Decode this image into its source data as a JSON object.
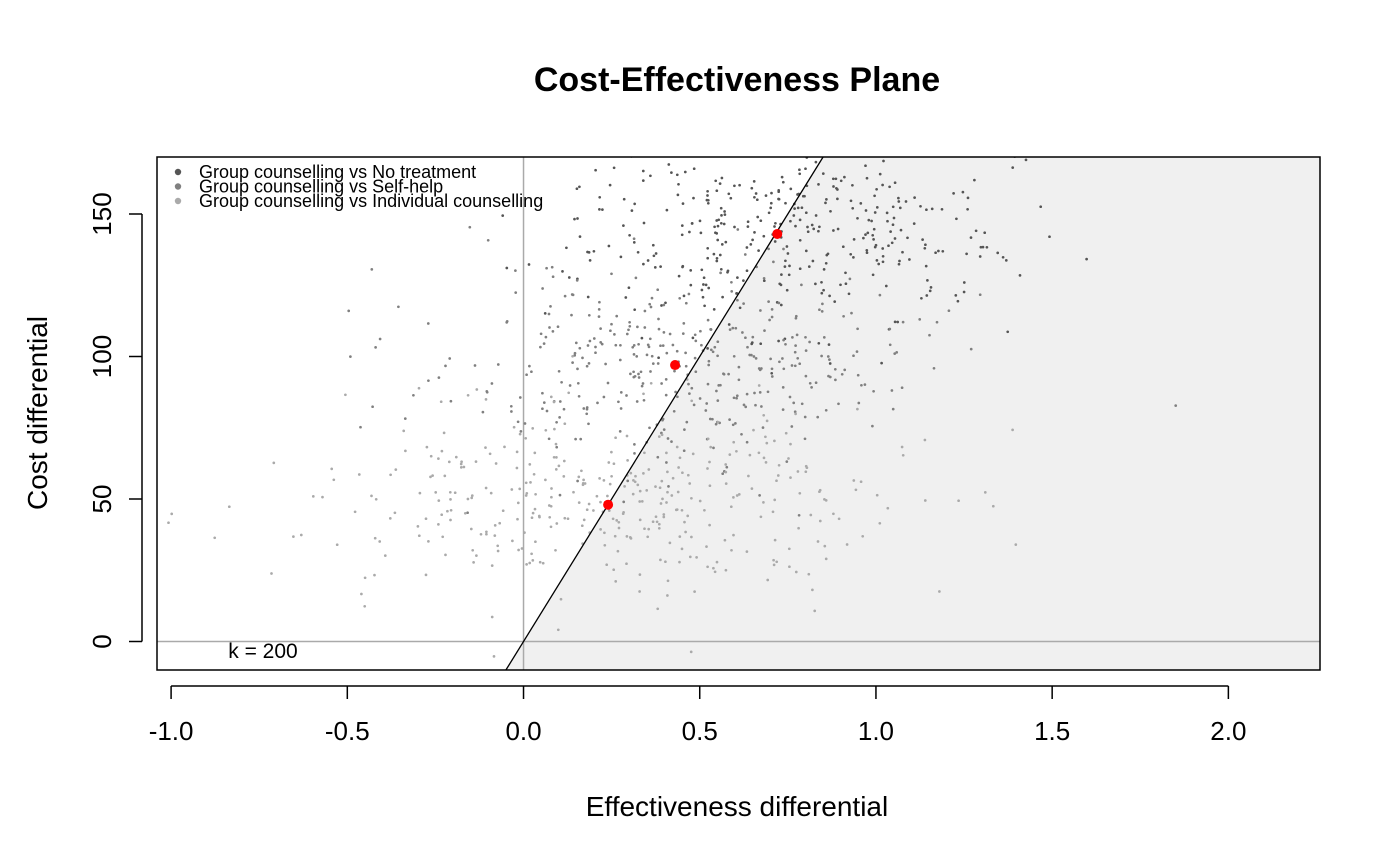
{
  "chart_data": {
    "type": "scatter",
    "title": "Cost-Effectiveness Plane",
    "xlabel": "Effectiveness differential",
    "ylabel": "Cost differential",
    "xlim": [
      -1.04,
      2.26
    ],
    "ylim": [
      -10,
      170
    ],
    "xticks": [
      -1.0,
      -0.5,
      0.0,
      0.5,
      1.0,
      1.5,
      2.0
    ],
    "xtick_labels": [
      "-1.0",
      "-0.5",
      "0.0",
      "0.5",
      "1.0",
      "1.5",
      "2.0"
    ],
    "yticks": [
      0,
      50,
      100,
      150
    ],
    "ytick_labels": [
      "0",
      "50",
      "100",
      "150"
    ],
    "grid": false,
    "legend_position": "top-left",
    "willingness_to_pay": 200,
    "wtp_label": "k = 200",
    "colors": {
      "sustainability_region": "#f0f0f0",
      "reference_lines": "#aaaaaa",
      "threshold_line": "#000000",
      "mean_points": "#ff0000"
    },
    "series": [
      {
        "name": "Group counselling vs No treatment",
        "color": "#555555",
        "mean": {
          "x": 0.72,
          "y": 143
        },
        "spread": {
          "sx": 0.3,
          "sy": 17
        },
        "n": 380
      },
      {
        "name": "Group counselling vs Self-help",
        "color": "#808080",
        "mean": {
          "x": 0.43,
          "y": 97
        },
        "spread": {
          "sx": 0.35,
          "sy": 17
        },
        "n": 380
      },
      {
        "name": "Group counselling vs Individual counselling",
        "color": "#aaaaaa",
        "mean": {
          "x": 0.24,
          "y": 48
        },
        "spread": {
          "sx": 0.4,
          "sy": 17
        },
        "n": 380
      }
    ]
  }
}
